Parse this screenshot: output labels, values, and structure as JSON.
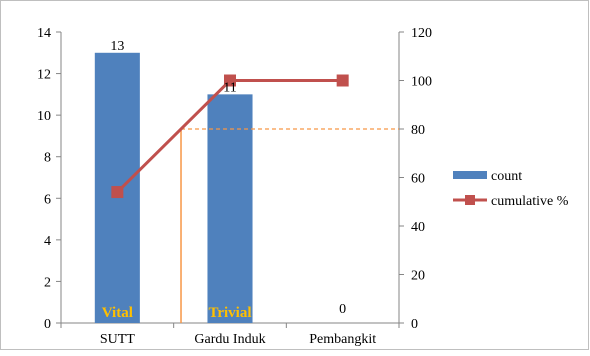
{
  "chart_data": {
    "type": "bar",
    "categories": [
      "SUTT",
      "Gardu Induk",
      "Pembangkit"
    ],
    "series": [
      {
        "name": "count",
        "kind": "bar",
        "axis": "left",
        "values": [
          13,
          11,
          0
        ],
        "color": "#4f81bd"
      },
      {
        "name": "cumulative %",
        "kind": "line",
        "axis": "right",
        "values": [
          54,
          100,
          100
        ],
        "color": "#c0504d"
      }
    ],
    "data_labels": [
      "13",
      "11",
      "0"
    ],
    "y_left": {
      "ylim": [
        0,
        14
      ],
      "ticks": [
        "0",
        "2",
        "4",
        "6",
        "8",
        "10",
        "12",
        "14"
      ]
    },
    "y_right": {
      "ylim": [
        0,
        120
      ],
      "ticks": [
        "0",
        "20",
        "40",
        "60",
        "80",
        "100",
        "120"
      ]
    },
    "threshold": {
      "value": 80,
      "axis": "right",
      "color": "#f79646"
    },
    "annotations": [
      {
        "text": "Vital",
        "category": "SUTT",
        "color": "#ffc000"
      },
      {
        "text": "Trivial",
        "category": "Gardu Induk",
        "color": "#ffc000"
      }
    ],
    "legend": {
      "placement": "right",
      "entries": [
        "count",
        "cumulative %"
      ]
    },
    "grid": false
  }
}
